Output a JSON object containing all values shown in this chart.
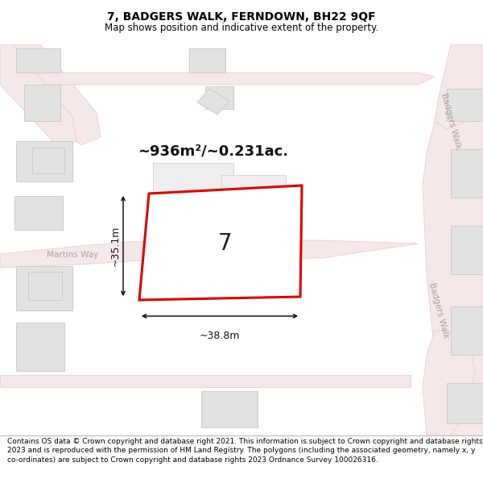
{
  "title": "7, BADGERS WALK, FERNDOWN, BH22 9QF",
  "subtitle": "Map shows position and indicative extent of the property.",
  "footer": "Contains OS data © Crown copyright and database right 2021. This information is subject to Crown copyright and database rights 2023 and is reproduced with the permission of HM Land Registry. The polygons (including the associated geometry, namely x, y co-ordinates) are subject to Crown copyright and database rights 2023 Ordnance Survey 100026316.",
  "bg_color": "#f9f5f5",
  "road_fill": "#f5e8e8",
  "road_edge": "#e8c8c8",
  "bld_fill": "#e2e2e2",
  "bld_edge": "#cccccc",
  "plot_fill": "#ffffff",
  "plot_edge": "#dd0000",
  "area_label": "~936m²/~0.231ac.",
  "width_label": "~38.8m",
  "height_label": "~35.1m",
  "plot_num": "7",
  "street1": "Badgers Walk",
  "street2": "Badgers Walk",
  "street3": "Martins Way",
  "title_fs": 10,
  "subtitle_fs": 8.5,
  "footer_fs": 6.5
}
